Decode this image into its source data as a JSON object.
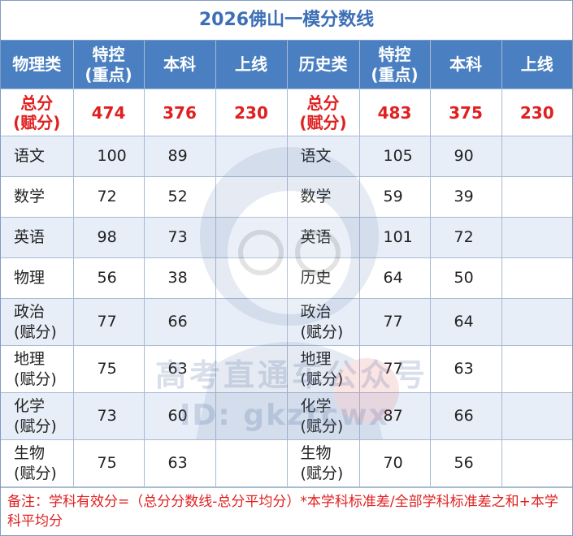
{
  "title": "2026佛山一模分数线",
  "header": {
    "physics": "物理类",
    "special": "特控\n(重点)",
    "benke": "本科",
    "shangxian": "上线",
    "history": "历史类",
    "special2": "特控\n(重点)",
    "benke2": "本科",
    "shangxian2": "上线"
  },
  "total": {
    "label_left": "总分\n(赋分)",
    "left": [
      "474",
      "376",
      "230"
    ],
    "label_right": "总分\n(赋分)",
    "right": [
      "483",
      "375",
      "230"
    ]
  },
  "rows": [
    {
      "l_name": "语文",
      "l": [
        "100",
        "89",
        ""
      ],
      "r_name": "语文",
      "r": [
        "105",
        "90",
        ""
      ]
    },
    {
      "l_name": "数学",
      "l": [
        "72",
        "52",
        ""
      ],
      "r_name": "数学",
      "r": [
        "59",
        "39",
        ""
      ]
    },
    {
      "l_name": "英语",
      "l": [
        "98",
        "73",
        ""
      ],
      "r_name": "英语",
      "r": [
        "101",
        "72",
        ""
      ]
    },
    {
      "l_name": "物理",
      "l": [
        "56",
        "38",
        ""
      ],
      "r_name": "历史",
      "r": [
        "64",
        "50",
        ""
      ]
    },
    {
      "l_name": "政治\n(赋分)",
      "l": [
        "77",
        "66",
        ""
      ],
      "r_name": "政治\n(赋分)",
      "r": [
        "77",
        "64",
        ""
      ]
    },
    {
      "l_name": "地理\n(赋分)",
      "l": [
        "75",
        "63",
        ""
      ],
      "r_name": "地理\n(赋分)",
      "r": [
        "77",
        "63",
        ""
      ]
    },
    {
      "l_name": "化学\n(赋分)",
      "l": [
        "73",
        "60",
        ""
      ],
      "r_name": "化学\n(赋分)",
      "r": [
        "87",
        "66",
        ""
      ]
    },
    {
      "l_name": "生物\n(赋分)",
      "l": [
        "75",
        "63",
        ""
      ],
      "r_name": "生物\n(赋分)",
      "r": [
        "70",
        "56",
        ""
      ]
    }
  ],
  "note": "备注：学科有效分=（总分分数线-总分平均分）*本学科标准差/全部学科标准差之和+本学科平均分",
  "watermark": {
    "line1": "高考直通车公众号",
    "line2": "ID: gkztcwx",
    "logo": "mascot-logo"
  },
  "colors": {
    "header_bg": "#4a7fc1",
    "title": "#3d6fb6",
    "accent_red": "#e02020",
    "row_alt": "#e8eef8"
  }
}
